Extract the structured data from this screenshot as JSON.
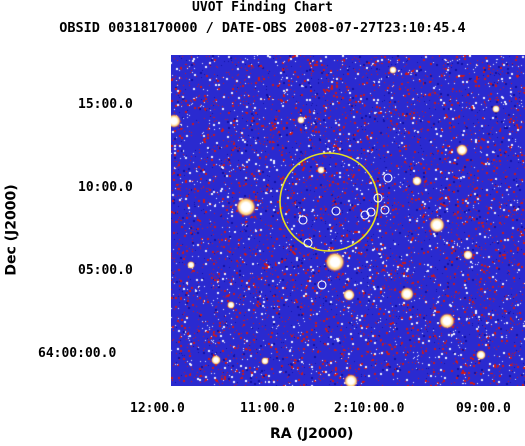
{
  "header": {
    "title": "UVOT Finding Chart",
    "subtitle": "OBSID 00318170000 / DATE-OBS 2008-07-27T23:10:45.4"
  },
  "axes": {
    "xlabel": "RA (J2000)",
    "ylabel": "Dec (J2000)",
    "x_ticks": [
      "12:00.0",
      "11:00.0",
      "2:10:00.0",
      "09:00.0"
    ],
    "y_ticks": [
      "15:00.0",
      "10:00.0",
      "05:00.0",
      "64:00:00.0"
    ]
  },
  "colors": {
    "background": "#2a2ad0",
    "noise_red": "#d01818",
    "noise_white": "#f4f4ff",
    "star_core": "#ffffff",
    "star_halo": "#ffd070",
    "error_circle": "#e8e020",
    "source_marker": "#ffffff"
  }
}
